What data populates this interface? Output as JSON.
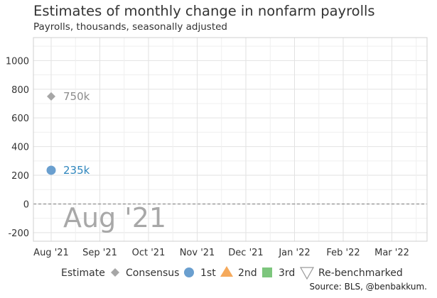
{
  "title": "Estimates of monthly change in nonfarm payrolls",
  "subtitle": "Payrolls, thousands, seasonally adjusted",
  "source": "Source: BLS, @benbakkum.",
  "chart_data": {
    "type": "scatter",
    "x_categories": [
      "Aug '21",
      "Sep '21",
      "Oct '21",
      "Nov '21",
      "Dec '21",
      "Jan '22",
      "Feb '22",
      "Mar '22"
    ],
    "y_ticks": [
      -200,
      0,
      200,
      400,
      600,
      800,
      1000
    ],
    "ylim": [
      -260,
      1160
    ],
    "xlabel": "",
    "ylabel": "",
    "grid": true,
    "zero_line": "dashed",
    "overlay_label": "Aug '21",
    "legend": {
      "title": "Estimate",
      "position": "bottom",
      "entries": [
        {
          "name": "Consensus",
          "shape": "diamond",
          "color": "#a6a6a6"
        },
        {
          "name": "1st",
          "shape": "circle",
          "color": "#6a9fcf"
        },
        {
          "name": "2nd",
          "shape": "triangle-up",
          "color": "#f5a95b"
        },
        {
          "name": "3rd",
          "shape": "square",
          "color": "#7dc67d"
        },
        {
          "name": "Re-benchmarked",
          "shape": "triangle-down-open",
          "color": "#9a9a9a"
        }
      ]
    },
    "series": [
      {
        "name": "Consensus",
        "color": "#a6a6a6",
        "label_color": "#8c8c8c",
        "shape": "diamond",
        "points": [
          {
            "x": "Aug '21",
            "y": 750,
            "label": "750k"
          }
        ]
      },
      {
        "name": "1st",
        "color": "#6a9fcf",
        "label_color": "#2f86bd",
        "shape": "circle",
        "points": [
          {
            "x": "Aug '21",
            "y": 235,
            "label": "235k"
          }
        ]
      }
    ]
  }
}
